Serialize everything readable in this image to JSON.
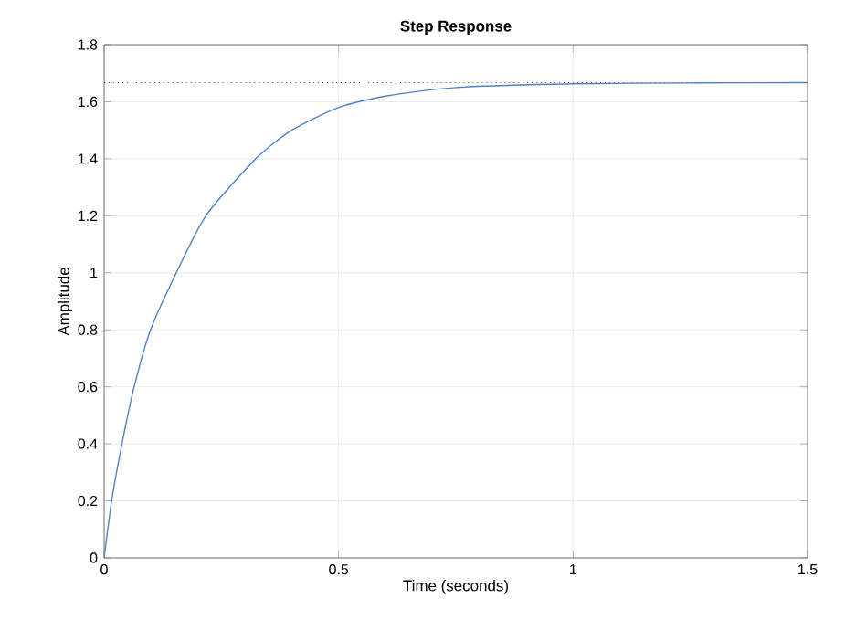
{
  "chart_data": {
    "type": "line",
    "title": "Step Response",
    "xlabel": "Time (seconds)",
    "ylabel": "Amplitude",
    "x": [
      0,
      0.016,
      0.038,
      0.064,
      0.099,
      0.154,
      0.217,
      0.323,
      0.4,
      0.5,
      0.6,
      0.75,
      1.0,
      1.25,
      1.5
    ],
    "series": [
      {
        "color": "#4f81c4",
        "values": [
          0,
          0.2,
          0.4,
          0.6,
          0.8,
          1.0,
          1.2,
          1.4,
          1.5,
          1.58,
          1.62,
          1.65,
          1.663,
          1.666,
          1.667
        ]
      }
    ],
    "xlim": [
      0,
      1.5
    ],
    "ylim": [
      0,
      1.8
    ],
    "xticks": [
      0,
      0.5,
      1,
      1.5
    ],
    "yticks": [
      0,
      0.2,
      0.4,
      0.6,
      0.8,
      1,
      1.2,
      1.4,
      1.6,
      1.8
    ],
    "grid": true,
    "line_style": "solid",
    "marker": "none",
    "ref_lines": [
      {
        "axis": "y",
        "value": 1.667,
        "color": "#404040",
        "line_style": "dotted"
      }
    ]
  }
}
